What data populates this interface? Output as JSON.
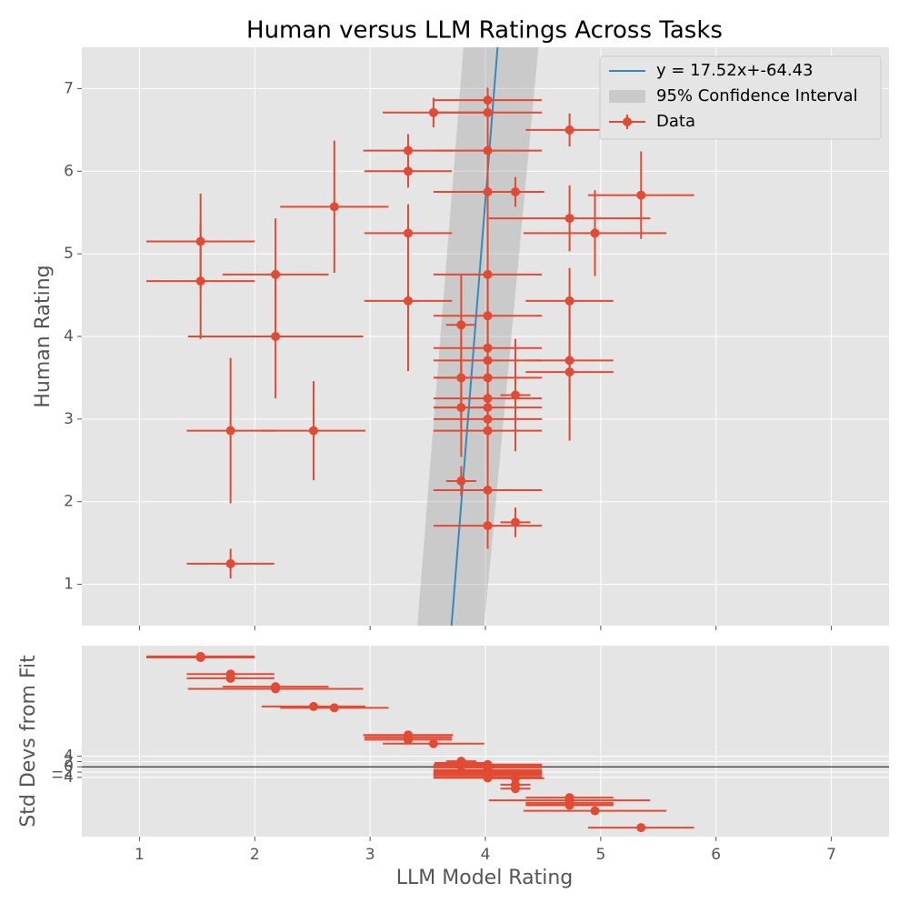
{
  "chart_data": [
    {
      "type": "scatter",
      "title": "Human versus LLM Ratings Across Tasks",
      "ylabel": "Human Rating",
      "xlim": [
        0.5,
        7.5
      ],
      "ylim": [
        0.5,
        7.5
      ],
      "xticks": [
        1,
        2,
        3,
        4,
        5,
        6,
        7
      ],
      "yticks": [
        1,
        2,
        3,
        4,
        5,
        6,
        7
      ],
      "grid": true,
      "legend": "upper right",
      "x": [
        1.53,
        1.53,
        1.79,
        1.79,
        2.18,
        2.18,
        2.51,
        2.69,
        3.33,
        3.33,
        3.33,
        3.33,
        3.55,
        3.79,
        3.79,
        3.79,
        3.79,
        4.02,
        4.02,
        4.02,
        4.02,
        4.02,
        4.02,
        4.02,
        4.02,
        4.02,
        4.02,
        4.02,
        4.02,
        4.02,
        4.02,
        4.02,
        4.26,
        4.26,
        4.26,
        4.73,
        4.73,
        4.73,
        4.73,
        4.73,
        4.95,
        5.35
      ],
      "series": [
        {
          "name": "Data",
          "color": "#e24a33",
          "values": [
            5.15,
            4.67,
            2.86,
            1.25,
            4.75,
            4.0,
            2.86,
            5.57,
            6.25,
            6.0,
            5.25,
            4.43,
            6.71,
            4.14,
            3.5,
            3.14,
            2.25,
            6.86,
            6.71,
            6.25,
            5.75,
            4.75,
            4.25,
            3.86,
            3.71,
            3.5,
            3.25,
            3.14,
            3.0,
            2.86,
            2.14,
            1.71,
            5.75,
            3.29,
            1.75,
            6.5,
            5.43,
            4.43,
            3.71,
            3.57,
            5.25,
            5.71
          ],
          "xerr": [
            0.47,
            0.47,
            0.38,
            0.38,
            0.46,
            0.76,
            0.45,
            0.47,
            0.39,
            0.38,
            0.38,
            0.38,
            0.44,
            0.13,
            0.23,
            0.23,
            0.13,
            0.47,
            0.47,
            0.47,
            0.47,
            0.47,
            0.47,
            0.47,
            0.47,
            0.47,
            0.47,
            0.47,
            0.47,
            0.47,
            0.47,
            0.47,
            0.25,
            0.13,
            0.13,
            0.38,
            0.7,
            0.38,
            0.38,
            0.38,
            0.62,
            0.46
          ],
          "yerr": [
            0.58,
            0.7,
            0.88,
            0.18,
            0.68,
            0.75,
            0.6,
            0.8,
            0.2,
            0.2,
            0.35,
            0.85,
            0.18,
            0.6,
            0.6,
            0.6,
            0.18,
            0.15,
            0.3,
            0.2,
            0.5,
            0.5,
            0.5,
            0.5,
            0.5,
            0.5,
            0.5,
            0.5,
            0.5,
            0.5,
            0.5,
            0.28,
            0.18,
            0.68,
            0.18,
            0.2,
            0.4,
            0.4,
            0.4,
            0.83,
            0.52,
            0.53
          ]
        }
      ],
      "fit": {
        "label": "y = 17.52x+-64.43",
        "slope": 17.52,
        "intercept": -64.43,
        "color": "#348abd"
      },
      "ci": {
        "label": "95% Confidence Interval",
        "y": [
          0.5,
          7.5
        ],
        "x_low": [
          3.41,
          3.81
        ],
        "x_high": [
          3.99,
          4.46
        ]
      }
    },
    {
      "type": "residual",
      "xlabel": "LLM Model Rating",
      "ylabel": "Std Devs from Fit",
      "xlim": [
        0.5,
        7.5
      ],
      "ylim": [
        -26.5,
        46
      ],
      "xticks": [
        1,
        2,
        3,
        4,
        5,
        6,
        7
      ],
      "yticks": [
        {
          "value": -4,
          "label": "−4"
        },
        {
          "value": -2,
          "label": "−2"
        },
        0,
        2,
        4
      ],
      "grid": true,
      "values": [
        41.9,
        41.5,
        35.2,
        33.6,
        30.4,
        29.6,
        22.9,
        22.4,
        12.1,
        11.9,
        11.1,
        10.3,
        8.8,
        2.1,
        1.5,
        1.1,
        0.3,
        0.84,
        0.7,
        0.25,
        -0.25,
        -1.23,
        -1.72,
        -2.1,
        -2.25,
        -2.45,
        -2.7,
        -2.8,
        -2.94,
        -3.08,
        -3.78,
        -4.21,
        -4.37,
        -6.78,
        -8.29,
        -11.7,
        -12.75,
        -13.7,
        -14.4,
        -14.6,
        -16.7,
        -23.1
      ]
    }
  ]
}
